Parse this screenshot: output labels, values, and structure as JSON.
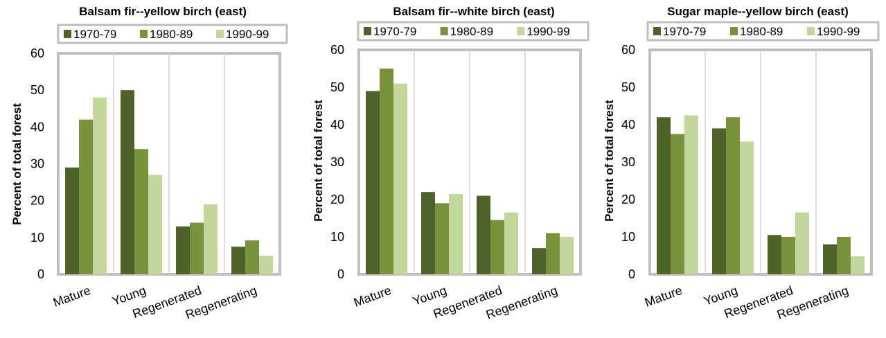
{
  "colors": {
    "1970-79": "#4f6228",
    "1980-89": "#77933c",
    "1990-99": "#c3d69b"
  },
  "chart_data": [
    {
      "type": "bar",
      "title": "Balsam fir--yellow birch (east)",
      "ylabel": "Percent of total forest",
      "xlabel": "",
      "ylim": [
        0,
        60
      ],
      "yticks": [
        "0",
        "10",
        "20",
        "30",
        "40",
        "50",
        "60"
      ],
      "categories": [
        "Mature",
        "Young",
        "Regenerated",
        "Regenerating"
      ],
      "series": [
        {
          "name": "1970-79",
          "values": [
            29,
            50,
            13,
            7.5
          ]
        },
        {
          "name": "1980-89",
          "values": [
            42,
            34,
            14,
            9.2
          ]
        },
        {
          "name": "1990-99",
          "values": [
            48,
            27,
            19,
            5
          ]
        }
      ],
      "grid": true,
      "legend": "top"
    },
    {
      "type": "bar",
      "title": "Balsam fir--white birch (east)",
      "ylabel": "Percent of total forest",
      "xlabel": "",
      "ylim": [
        0,
        60
      ],
      "yticks": [
        "0",
        "10",
        "20",
        "30",
        "40",
        "50",
        "60"
      ],
      "categories": [
        "Mature",
        "Young",
        "Regenerated",
        "Regenerating"
      ],
      "series": [
        {
          "name": "1970-79",
          "values": [
            49,
            22,
            21,
            7
          ]
        },
        {
          "name": "1980-89",
          "values": [
            55,
            19,
            14.5,
            11
          ]
        },
        {
          "name": "1990-99",
          "values": [
            51,
            21.5,
            16.5,
            10
          ]
        }
      ],
      "grid": true,
      "legend": "top"
    },
    {
      "type": "bar",
      "title": "Sugar maple--yellow birch (east)",
      "ylabel": "Percent of total forest",
      "xlabel": "",
      "ylim": [
        0,
        60
      ],
      "yticks": [
        "0",
        "10",
        "20",
        "30",
        "40",
        "50",
        "60"
      ],
      "categories": [
        "Mature",
        "Young",
        "Regenerated",
        "Regenerating"
      ],
      "series": [
        {
          "name": "1970-79",
          "values": [
            42,
            39,
            10.5,
            8
          ]
        },
        {
          "name": "1980-89",
          "values": [
            37.5,
            42,
            10,
            10
          ]
        },
        {
          "name": "1990-99",
          "values": [
            42.5,
            35.5,
            16.5,
            4.8
          ]
        }
      ],
      "grid": true,
      "legend": "top"
    }
  ]
}
